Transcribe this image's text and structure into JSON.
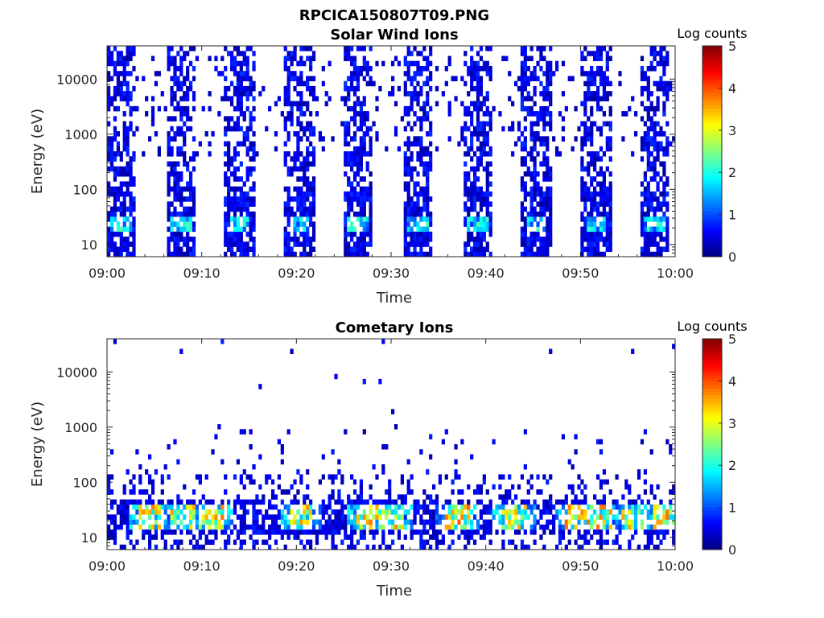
{
  "figure": {
    "title": "RPCICA150807T09.PNG"
  },
  "chart_data": [
    {
      "type": "heatmap",
      "title": "Solar Wind Ions",
      "xlabel": "Time",
      "ylabel": "Energy (eV)",
      "x_ticks": [
        "09:00",
        "09:10",
        "09:20",
        "09:30",
        "09:40",
        "09:50",
        "10:00"
      ],
      "x_range_minutes": [
        0,
        60
      ],
      "y_scale": "log",
      "y_ticks": [
        10,
        100,
        1000,
        10000
      ],
      "y_tick_labels": [
        "10",
        "100",
        "1000",
        "10000"
      ],
      "ylim": [
        6,
        40000
      ],
      "colorbar": {
        "label": "Log counts",
        "range": [
          0,
          5
        ],
        "ticks": [
          "0",
          "1",
          "2",
          "3",
          "4",
          "5"
        ],
        "colormap": "jet"
      },
      "burst_centers_minutes": [
        1.5,
        7.8,
        14.0,
        20.3,
        26.5,
        32.8,
        39.1,
        45.4,
        51.6,
        57.8
      ],
      "burst_width_minutes": 3.2,
      "high_count_energy_eV": [
        20,
        30
      ],
      "peak_log_counts": 2.3
    },
    {
      "type": "heatmap",
      "title": "Cometary Ions",
      "xlabel": "Time",
      "ylabel": "Energy (eV)",
      "x_ticks": [
        "09:00",
        "09:10",
        "09:20",
        "09:30",
        "09:40",
        "09:50",
        "10:00"
      ],
      "x_range_minutes": [
        0,
        60
      ],
      "y_scale": "log",
      "y_ticks": [
        10,
        100,
        1000,
        10000
      ],
      "y_tick_labels": [
        "10",
        "100",
        "1000",
        "10000"
      ],
      "ylim": [
        6,
        40000
      ],
      "colorbar": {
        "label": "Log counts",
        "range": [
          0,
          5
        ],
        "ticks": [
          "0",
          "1",
          "2",
          "3",
          "4",
          "5"
        ],
        "colormap": "jet"
      },
      "hot_spot_centers_minutes": [
        4.5,
        8.0,
        11.0,
        20.5,
        27.5,
        30.0,
        37.0,
        43.0,
        49.5,
        52.0,
        55.5,
        59.0
      ],
      "high_count_energy_eV": [
        15,
        40
      ],
      "peak_log_counts": 3.9
    }
  ]
}
